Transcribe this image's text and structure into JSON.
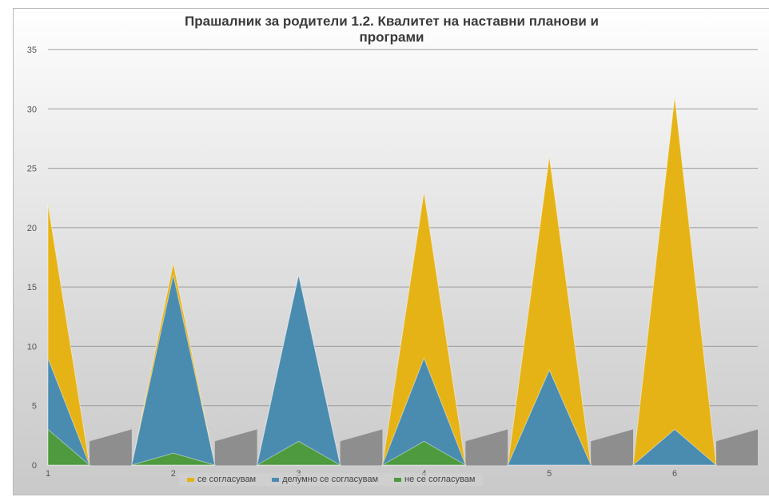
{
  "chart_data": {
    "type": "area",
    "title": "Прашалник за родители 1.2. Квалитет на наставни планови и програми",
    "categories": [
      "1",
      "2",
      "3",
      "4",
      "5",
      "6"
    ],
    "y_ticks": [
      "0",
      "5",
      "10",
      "15",
      "20",
      "25",
      "30",
      "35"
    ],
    "ylim": [
      0,
      35
    ],
    "grid": true,
    "legend_position": "bottom",
    "series": [
      {
        "name": "се согласувам",
        "color": "#E6B316",
        "values": [
          22,
          17,
          16,
          23,
          26,
          31
        ]
      },
      {
        "name": "делумно се согласувам",
        "color": "#4A8BB0",
        "values": [
          9,
          16,
          16,
          9,
          8,
          3
        ]
      },
      {
        "name": "не се согласувам",
        "color": "#4E9A3E",
        "values": [
          3,
          1,
          2,
          2,
          0,
          0
        ]
      }
    ],
    "floor_color": "#8E8E8E",
    "floor_values": [
      2,
      3
    ]
  }
}
